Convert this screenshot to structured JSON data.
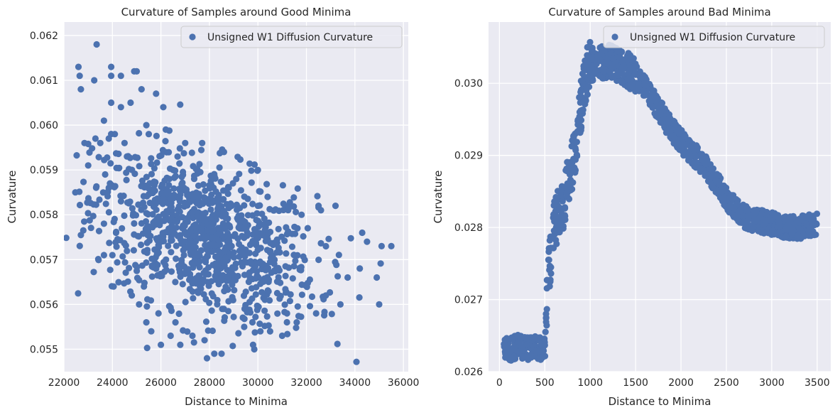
{
  "chart_data": [
    {
      "type": "scatter",
      "title": "Curvature of Samples around Good Minima",
      "xlabel": "Distance to Minima",
      "ylabel": "Curvature",
      "xlim": [
        22000,
        36200
      ],
      "ylim": [
        0.0545,
        0.0623
      ],
      "xticks": [
        "22000",
        "24000",
        "26000",
        "28000",
        "30000",
        "32000",
        "34000",
        "36000"
      ],
      "yticks": [
        "0.055",
        "0.056",
        "0.057",
        "0.058",
        "0.059",
        "0.060",
        "0.061",
        "0.062"
      ],
      "grid": true,
      "legend": "top-right",
      "series": [
        {
          "name": "Unsigned W1 Diffusion Curvature",
          "color": "#4c72b0",
          "points": [
            [
              22600,
              0.0613
            ],
            [
              22650,
              0.0611
            ],
            [
              22700,
              0.0608
            ],
            [
              22850,
              0.0596
            ],
            [
              23000,
              0.0591
            ],
            [
              23250,
              0.061
            ],
            [
              23350,
              0.0618
            ],
            [
              23300,
              0.0597
            ],
            [
              23500,
              0.0596
            ],
            [
              23650,
              0.0601
            ],
            [
              23700,
              0.0589
            ],
            [
              23650,
              0.0578
            ],
            [
              23650,
              0.0571
            ],
            [
              23850,
              0.0597
            ],
            [
              23950,
              0.0613
            ],
            [
              23950,
              0.0611
            ],
            [
              23950,
              0.0605
            ],
            [
              23900,
              0.0587
            ],
            [
              23850,
              0.0586
            ],
            [
              24000,
              0.0571
            ],
            [
              24050,
              0.0564
            ],
            [
              24150,
              0.0576
            ],
            [
              24100,
              0.0598
            ],
            [
              24350,
              0.0611
            ],
            [
              24350,
              0.0604
            ],
            [
              24500,
              0.0596
            ],
            [
              24600,
              0.0593
            ],
            [
              24750,
              0.0605
            ],
            [
              24900,
              0.0612
            ],
            [
              25000,
              0.0612
            ],
            [
              24800,
              0.0562
            ],
            [
              25100,
              0.056
            ],
            [
              25200,
              0.0608
            ],
            [
              25300,
              0.0564
            ],
            [
              25400,
              0.0556
            ],
            [
              25400,
              0.06
            ],
            [
              25500,
              0.0598
            ],
            [
              25600,
              0.0554
            ],
            [
              25800,
              0.0607
            ],
            [
              25900,
              0.0558
            ],
            [
              26000,
              0.0551
            ],
            [
              26100,
              0.0604
            ],
            [
              26200,
              0.0599
            ],
            [
              26400,
              0.0553
            ],
            [
              26600,
              0.0556
            ],
            [
              26800,
              0.0551
            ],
            [
              27000,
              0.0596
            ],
            [
              27300,
              0.0553
            ],
            [
              27700,
              0.0596
            ],
            [
              27800,
              0.0552
            ],
            [
              27900,
              0.0548
            ],
            [
              28200,
              0.0549
            ],
            [
              28500,
              0.0549
            ],
            [
              28600,
              0.0594
            ],
            [
              29800,
              0.0551
            ],
            [
              29850,
              0.055
            ],
            [
              30000,
              0.059
            ],
            [
              30100,
              0.0554
            ],
            [
              30400,
              0.0584
            ],
            [
              31000,
              0.0553
            ],
            [
              31800,
              0.058
            ],
            [
              32500,
              0.0582
            ],
            [
              32600,
              0.0581
            ],
            [
              33200,
              0.0582
            ],
            [
              34300,
              0.0576
            ],
            [
              34500,
              0.0574
            ],
            [
              35100,
              0.0573
            ],
            [
              35500,
              0.0573
            ],
            [
              34900,
              0.0566
            ],
            [
              35000,
              0.056
            ],
            [
              34200,
              0.0568
            ],
            [
              33700,
              0.0566
            ],
            [
              33400,
              0.056
            ],
            [
              32800,
              0.0562
            ],
            [
              32400,
              0.0558
            ],
            [
              31600,
              0.0556
            ],
            [
              31200,
              0.0558
            ]
          ],
          "cloud": {
            "note": "dense core of ~1000 samples",
            "center": [
              27800,
              0.0575
            ],
            "x_spread": 2300,
            "y_spread": 0.00085,
            "count": 1000
          }
        }
      ]
    },
    {
      "type": "scatter",
      "title": "Curvature of Samples around Bad Minima",
      "xlabel": "Distance to Minima",
      "ylabel": "Curvature",
      "xlim": [
        -120,
        3650
      ],
      "ylim": [
        0.026,
        0.03085
      ],
      "xticks": [
        "0",
        "500",
        "1000",
        "1500",
        "2000",
        "2500",
        "3000",
        "3500"
      ],
      "yticks": [
        "0.026",
        "0.027",
        "0.028",
        "0.029",
        "0.030"
      ],
      "grid": true,
      "legend": "top-right",
      "series": [
        {
          "name": "Unsigned W1 Diffusion Curvature",
          "color": "#4c72b0",
          "curve": [
            [
              50,
              0.02635
            ],
            [
              100,
              0.0263
            ],
            [
              200,
              0.02635
            ],
            [
              300,
              0.02632
            ],
            [
              400,
              0.02635
            ],
            [
              500,
              0.0263
            ],
            [
              540,
              0.02735
            ],
            [
              560,
              0.02755
            ],
            [
              600,
              0.028
            ],
            [
              650,
              0.0282
            ],
            [
              700,
              0.0283
            ],
            [
              750,
              0.0286
            ],
            [
              800,
              0.02885
            ],
            [
              850,
              0.0292
            ],
            [
              900,
              0.0297
            ],
            [
              950,
              0.0301
            ],
            [
              1000,
              0.03025
            ],
            [
              1100,
              0.0303
            ],
            [
              1200,
              0.0303
            ],
            [
              1300,
              0.03025
            ],
            [
              1400,
              0.0302
            ],
            [
              1500,
              0.0301
            ],
            [
              1600,
              0.02995
            ],
            [
              1700,
              0.02975
            ],
            [
              1800,
              0.02955
            ],
            [
              1900,
              0.02935
            ],
            [
              2000,
              0.0292
            ],
            [
              2100,
              0.02905
            ],
            [
              2200,
              0.02895
            ],
            [
              2300,
              0.0288
            ],
            [
              2400,
              0.0286
            ],
            [
              2500,
              0.0284
            ],
            [
              2600,
              0.02825
            ],
            [
              2700,
              0.02815
            ],
            [
              2800,
              0.0281
            ],
            [
              2900,
              0.02808
            ],
            [
              3000,
              0.02805
            ],
            [
              3100,
              0.02802
            ],
            [
              3200,
              0.028
            ],
            [
              3300,
              0.028
            ],
            [
              3400,
              0.02802
            ],
            [
              3500,
              0.02805
            ]
          ],
          "band": 0.00016,
          "count": 1400
        }
      ]
    }
  ]
}
